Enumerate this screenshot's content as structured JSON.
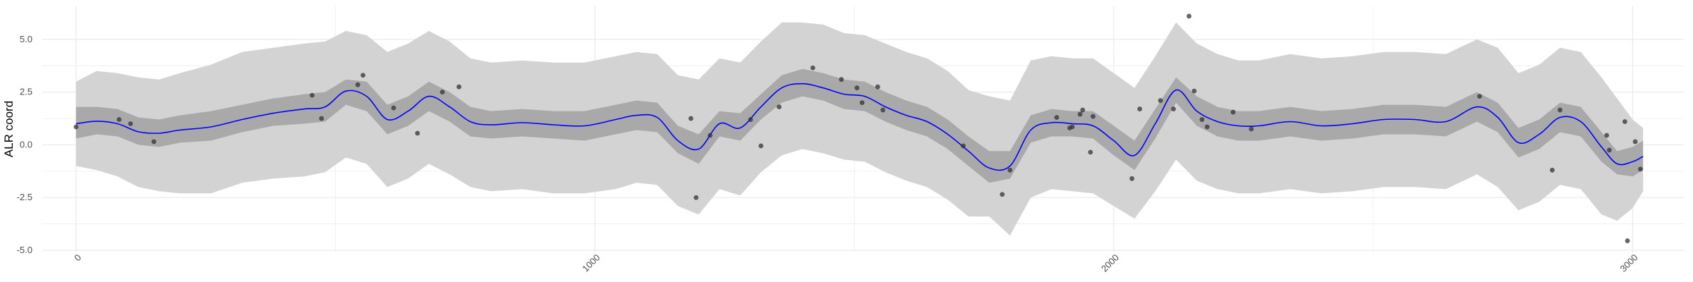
{
  "chart_data": {
    "type": "line",
    "title": "",
    "xlabel": "",
    "ylabel": "ALR coord",
    "xlim": [
      -65,
      3100
    ],
    "ylim": [
      -5.1,
      6.6
    ],
    "x_ticks": [
      0,
      1000,
      2000,
      3000
    ],
    "x_tick_labels": [
      "0",
      "1000",
      "2000",
      "3000"
    ],
    "y_ticks": [
      -5.0,
      -2.5,
      0.0,
      2.5,
      5.0
    ],
    "y_tick_labels": [
      "-5.0",
      "-2.5",
      "0.0",
      "2.5",
      "5.0"
    ],
    "grid": true,
    "legend": "none",
    "colors": {
      "mean_line": "#0000ff",
      "inner_band": "#a9a9a9",
      "outer_band": "#d3d3d3",
      "points": "#333333",
      "grid": "#ebebeb"
    },
    "series": [
      {
        "kind": "line",
        "x": [
          0,
          40,
          80,
          120,
          160,
          200,
          260,
          320,
          380,
          440,
          480,
          520,
          560,
          600,
          640,
          680,
          720,
          760,
          800,
          860,
          920,
          980,
          1040,
          1080,
          1120,
          1160,
          1200,
          1240,
          1280,
          1320,
          1360,
          1400,
          1440,
          1480,
          1520,
          1560,
          1600,
          1640,
          1680,
          1720,
          1760,
          1800,
          1840,
          1880,
          1920,
          1960,
          2000,
          2040,
          2080,
          2120,
          2160,
          2200,
          2240,
          2280,
          2340,
          2400,
          2460,
          2520,
          2580,
          2640,
          2700,
          2740,
          2780,
          2820,
          2860,
          2900,
          2940,
          2970,
          3000,
          3020
        ],
        "y": [
          1.0,
          1.12,
          1.0,
          0.62,
          0.55,
          0.7,
          0.85,
          1.2,
          1.5,
          1.7,
          1.8,
          2.55,
          2.3,
          1.2,
          1.6,
          2.3,
          1.8,
          1.1,
          0.95,
          1.05,
          0.95,
          0.9,
          1.2,
          1.4,
          1.3,
          0.2,
          -0.2,
          1.0,
          0.8,
          1.8,
          2.7,
          2.9,
          2.7,
          2.4,
          2.3,
          1.8,
          1.4,
          1.1,
          0.5,
          -0.3,
          -1.1,
          -1.0,
          0.7,
          1.05,
          1.0,
          0.9,
          0.2,
          -0.5,
          1.0,
          2.6,
          1.6,
          1.1,
          0.9,
          0.9,
          1.1,
          0.9,
          1.0,
          1.2,
          1.2,
          1.1,
          1.8,
          1.3,
          0.1,
          0.5,
          1.3,
          1.1,
          -0.1,
          -0.9,
          -0.8,
          -0.55
        ]
      },
      {
        "kind": "band",
        "x": [
          0,
          40,
          80,
          120,
          160,
          200,
          260,
          320,
          380,
          440,
          480,
          520,
          560,
          600,
          640,
          680,
          720,
          760,
          800,
          860,
          920,
          980,
          1040,
          1080,
          1120,
          1160,
          1200,
          1240,
          1280,
          1320,
          1360,
          1400,
          1440,
          1480,
          1520,
          1560,
          1600,
          1640,
          1680,
          1720,
          1760,
          1800,
          1840,
          1880,
          1920,
          1960,
          2000,
          2040,
          2080,
          2120,
          2160,
          2200,
          2240,
          2280,
          2340,
          2400,
          2460,
          2520,
          2580,
          2640,
          2700,
          2740,
          2780,
          2820,
          2860,
          2900,
          2940,
          2970,
          3000,
          3020
        ],
        "lower": [
          0.3,
          0.5,
          0.4,
          0.0,
          -0.1,
          0.1,
          0.2,
          0.6,
          0.9,
          1.0,
          1.1,
          1.9,
          1.6,
          0.5,
          0.9,
          1.6,
          1.1,
          0.4,
          0.3,
          0.4,
          0.3,
          0.2,
          0.5,
          0.7,
          0.6,
          -0.4,
          -0.9,
          0.4,
          0.2,
          1.2,
          2.0,
          2.3,
          2.1,
          1.7,
          1.6,
          1.1,
          0.7,
          0.4,
          -0.2,
          -1.0,
          -1.8,
          -1.6,
          0.1,
          0.4,
          0.4,
          0.3,
          -0.5,
          -1.2,
          0.3,
          2.0,
          0.9,
          0.4,
          0.2,
          0.2,
          0.4,
          0.2,
          0.3,
          0.5,
          0.5,
          0.4,
          1.1,
          0.6,
          -0.6,
          -0.2,
          0.6,
          0.4,
          -0.8,
          -1.4,
          -1.5,
          -1.2
        ],
        "upper": [
          1.8,
          1.8,
          1.7,
          1.3,
          1.2,
          1.4,
          1.6,
          1.9,
          2.2,
          2.4,
          2.5,
          3.1,
          3.0,
          1.9,
          2.3,
          3.0,
          2.5,
          1.8,
          1.6,
          1.7,
          1.6,
          1.6,
          1.9,
          2.1,
          2.0,
          0.9,
          0.5,
          1.6,
          1.5,
          2.4,
          3.3,
          3.6,
          3.4,
          3.1,
          3.0,
          2.5,
          2.1,
          1.8,
          1.2,
          0.4,
          -0.3,
          -0.3,
          1.4,
          1.7,
          1.6,
          1.6,
          0.9,
          0.2,
          1.7,
          3.2,
          2.3,
          1.8,
          1.6,
          1.6,
          1.8,
          1.6,
          1.7,
          1.9,
          1.9,
          1.8,
          2.5,
          2.0,
          0.8,
          1.2,
          2.0,
          1.8,
          0.6,
          -0.3,
          -0.1,
          0.2
        ]
      },
      {
        "kind": "band",
        "x": [
          0,
          40,
          80,
          120,
          160,
          200,
          260,
          320,
          380,
          440,
          480,
          520,
          560,
          600,
          640,
          680,
          720,
          760,
          800,
          860,
          920,
          980,
          1040,
          1080,
          1120,
          1160,
          1200,
          1240,
          1280,
          1320,
          1360,
          1400,
          1440,
          1480,
          1520,
          1560,
          1600,
          1640,
          1680,
          1720,
          1760,
          1800,
          1840,
          1880,
          1920,
          1960,
          2000,
          2040,
          2080,
          2120,
          2160,
          2200,
          2240,
          2280,
          2340,
          2400,
          2460,
          2520,
          2580,
          2640,
          2700,
          2740,
          2780,
          2820,
          2860,
          2900,
          2940,
          2970,
          3000,
          3020
        ],
        "lower": [
          -1.0,
          -1.2,
          -1.5,
          -2.0,
          -2.2,
          -2.3,
          -2.3,
          -1.8,
          -1.6,
          -1.5,
          -1.3,
          -0.6,
          -0.9,
          -2.0,
          -1.6,
          -0.9,
          -1.4,
          -2.0,
          -2.2,
          -2.1,
          -2.3,
          -2.3,
          -2.1,
          -1.8,
          -1.9,
          -2.9,
          -3.3,
          -2.1,
          -2.4,
          -1.3,
          -0.5,
          -0.2,
          -0.4,
          -0.7,
          -0.8,
          -1.3,
          -1.7,
          -2.0,
          -2.6,
          -3.4,
          -3.4,
          -4.3,
          -2.5,
          -2.1,
          -2.2,
          -2.3,
          -2.9,
          -3.5,
          -2.2,
          -0.7,
          -1.7,
          -2.1,
          -2.3,
          -2.3,
          -2.1,
          -2.3,
          -2.2,
          -2.0,
          -2.0,
          -2.1,
          -1.4,
          -2.0,
          -3.1,
          -2.7,
          -1.9,
          -2.1,
          -3.3,
          -3.6,
          -3.0,
          -2.2
        ],
        "upper": [
          3.0,
          3.5,
          3.4,
          3.2,
          3.1,
          3.4,
          3.8,
          4.4,
          4.6,
          4.8,
          4.9,
          5.4,
          5.2,
          4.4,
          4.8,
          5.4,
          4.9,
          4.1,
          3.9,
          4.0,
          3.9,
          3.9,
          4.2,
          4.4,
          4.3,
          3.3,
          3.1,
          4.1,
          3.9,
          4.9,
          5.8,
          5.8,
          5.7,
          5.3,
          5.2,
          4.8,
          4.4,
          4.1,
          3.5,
          2.6,
          2.3,
          2.1,
          4.0,
          4.2,
          4.1,
          4.1,
          3.4,
          2.7,
          4.2,
          5.8,
          4.8,
          4.3,
          4.0,
          4.0,
          4.3,
          4.1,
          4.2,
          4.4,
          4.4,
          4.3,
          5.0,
          4.6,
          3.4,
          3.8,
          4.6,
          4.4,
          3.2,
          2.2,
          1.2,
          0.8
        ]
      },
      {
        "kind": "points",
        "x": [
          0,
          83,
          105,
          150,
          455,
          473,
          543,
          553,
          612,
          658,
          706,
          738,
          1185,
          1195,
          1222,
          1300,
          1320,
          1355,
          1420,
          1475,
          1505,
          1515,
          1545,
          1555,
          1710,
          1785,
          1800,
          1890,
          1915,
          1920,
          1935,
          1940,
          1955,
          1960,
          2035,
          2050,
          2090,
          2115,
          2145,
          2155,
          2170,
          2180,
          2230,
          2265,
          2705,
          2845,
          2860,
          2950,
          2955,
          2985,
          2990,
          3005,
          3015
        ],
        "y": [
          0.85,
          1.2,
          1.0,
          0.15,
          2.35,
          1.25,
          2.85,
          3.3,
          1.75,
          0.55,
          2.5,
          2.75,
          1.25,
          -2.5,
          0.45,
          1.2,
          -0.05,
          1.8,
          3.65,
          3.1,
          2.7,
          2.0,
          2.75,
          1.65,
          -0.05,
          -2.35,
          -1.2,
          1.3,
          0.8,
          0.85,
          1.45,
          1.65,
          -0.35,
          1.35,
          -1.6,
          1.7,
          2.1,
          1.7,
          6.1,
          2.55,
          1.2,
          0.85,
          1.55,
          0.75,
          2.3,
          -1.2,
          1.65,
          0.45,
          -0.25,
          1.1,
          -4.55,
          0.15,
          -1.15
        ]
      }
    ]
  }
}
